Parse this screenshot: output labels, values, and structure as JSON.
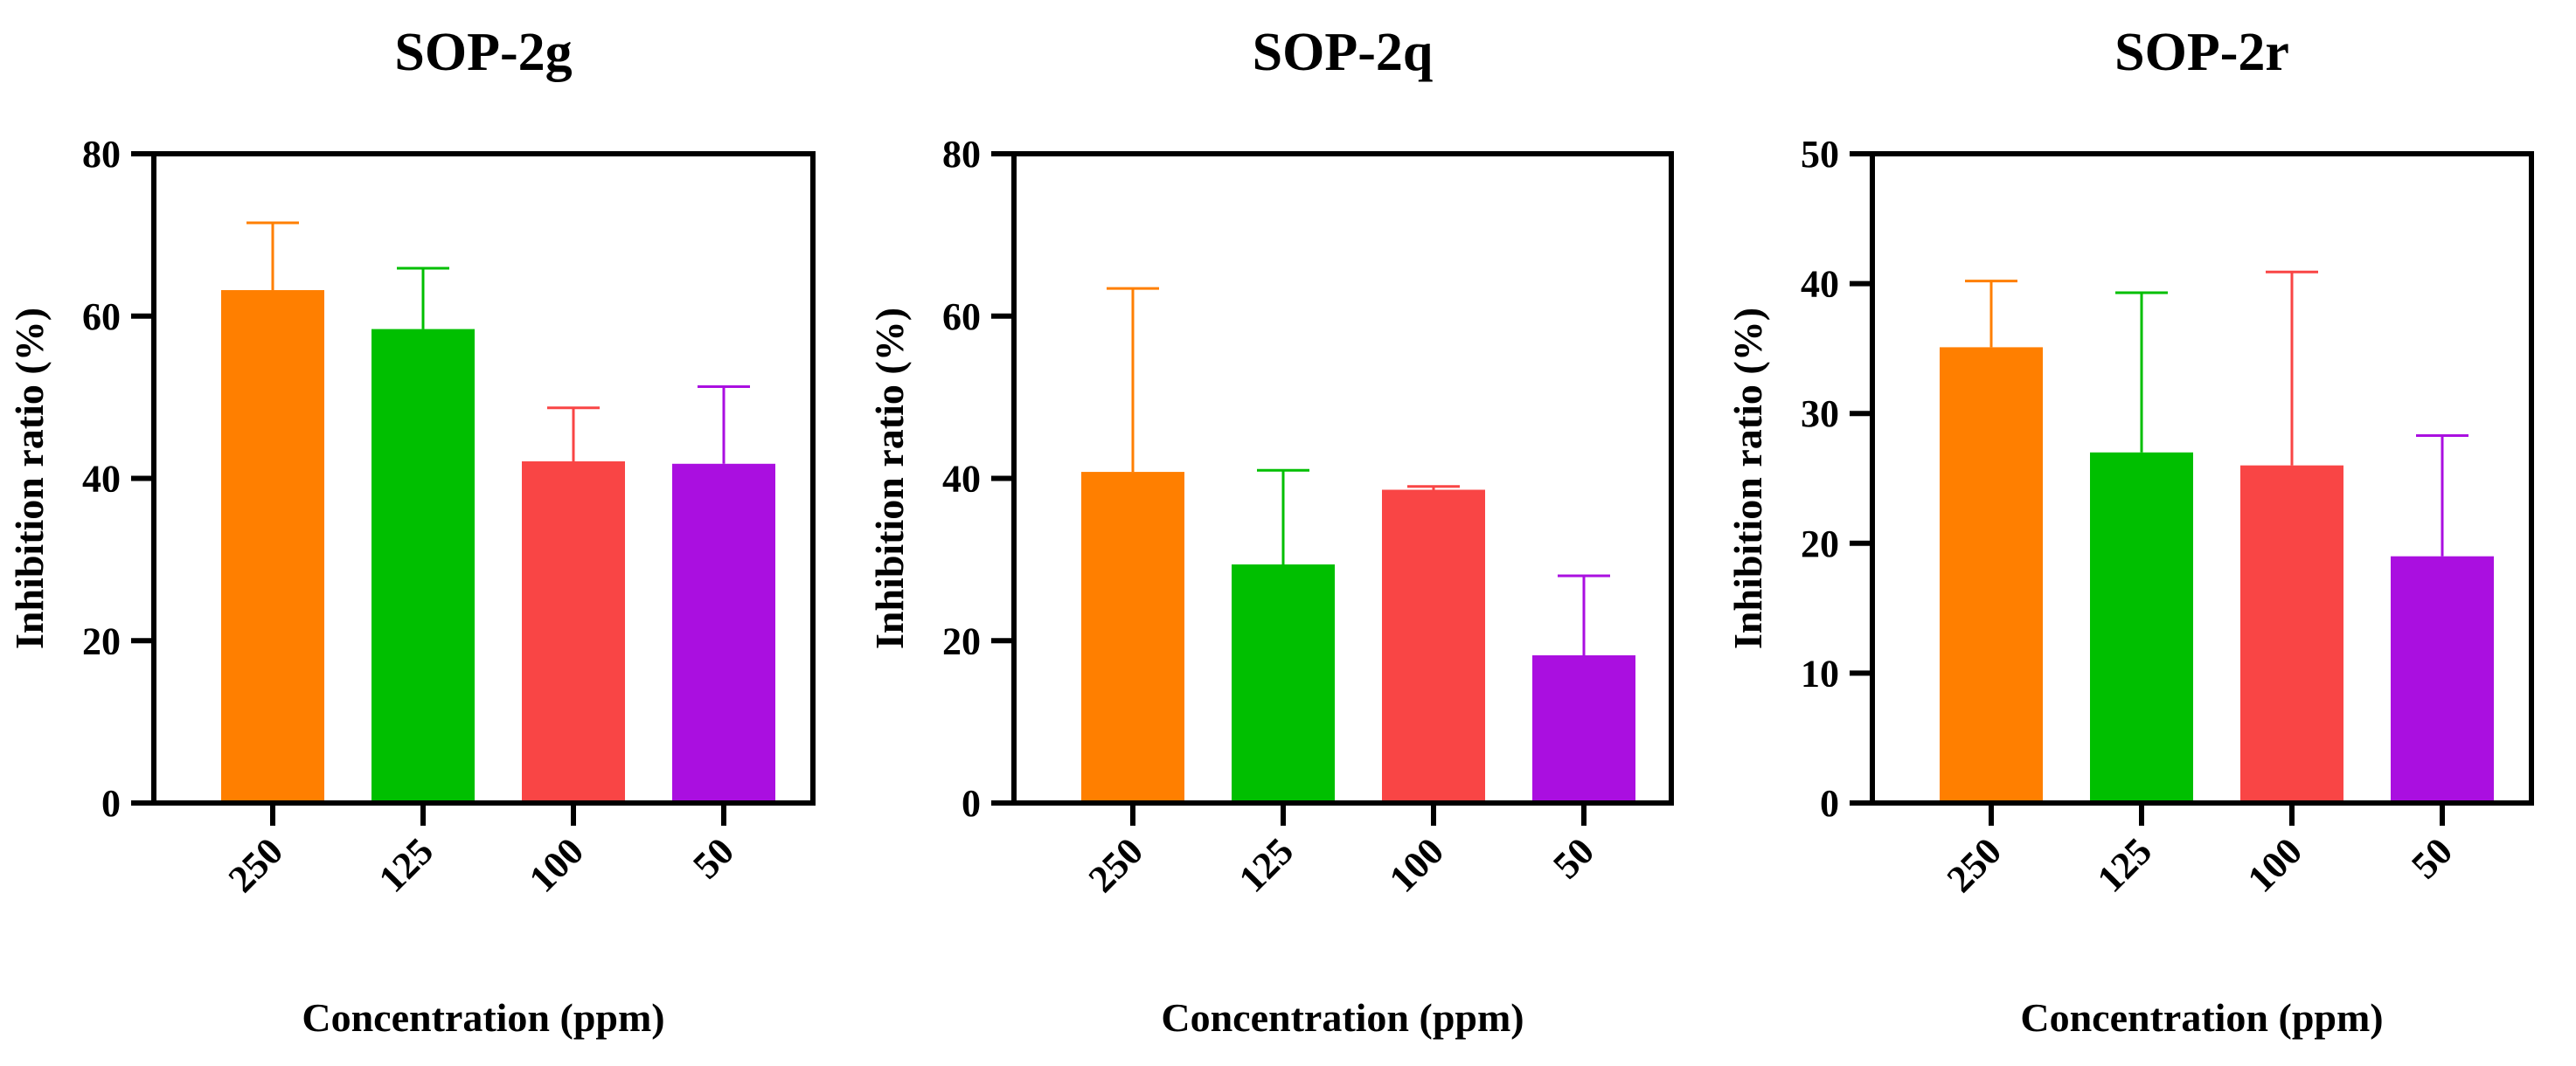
{
  "chart_data": [
    {
      "type": "bar",
      "title": "SOP-2g",
      "xlabel": "Concentration (ppm)",
      "ylabel": "Inhibition ratio (%)",
      "categories": [
        "250",
        "125",
        "100",
        "50"
      ],
      "values": [
        63.2,
        58.4,
        42.1,
        41.8
      ],
      "errors": [
        8.3,
        7.5,
        6.6,
        9.5
      ],
      "colors": [
        "#ff7f00",
        "#00bf00",
        "#f94545",
        "#aa0fe0"
      ],
      "ylim": [
        0,
        80
      ],
      "yticks": [
        0,
        20,
        40,
        60,
        80
      ],
      "grid": false
    },
    {
      "type": "bar",
      "title": "SOP-2q",
      "xlabel": "Concentration (ppm)",
      "ylabel": "Inhibition ratio (%)",
      "categories": [
        "250",
        "125",
        "100",
        "50"
      ],
      "values": [
        40.8,
        29.4,
        38.6,
        18.2
      ],
      "errors": [
        22.6,
        11.6,
        0.4,
        9.8
      ],
      "colors": [
        "#ff7f00",
        "#00bf00",
        "#f94545",
        "#aa0fe0"
      ],
      "ylim": [
        0,
        80
      ],
      "yticks": [
        0,
        20,
        40,
        60,
        80
      ],
      "grid": false
    },
    {
      "type": "bar",
      "title": "SOP-2r",
      "xlabel": "Concentration (ppm)",
      "ylabel": "Inhibition ratio (%)",
      "categories": [
        "250",
        "125",
        "100",
        "50"
      ],
      "values": [
        35.1,
        27.0,
        26.0,
        19.0
      ],
      "errors": [
        5.1,
        12.3,
        14.9,
        9.3
      ],
      "colors": [
        "#ff7f00",
        "#00bf00",
        "#f94545",
        "#aa0fe0"
      ],
      "ylim": [
        0,
        50
      ],
      "yticks": [
        0,
        10,
        20,
        30,
        40,
        50
      ],
      "grid": false
    }
  ]
}
